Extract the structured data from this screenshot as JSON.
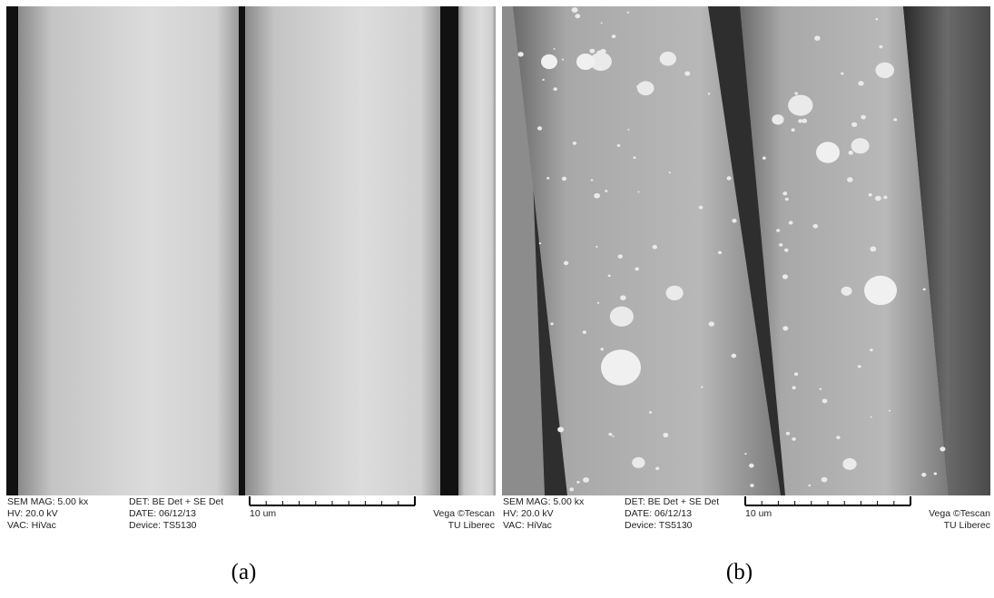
{
  "panels": [
    {
      "mag": "SEM MAG: 5.00 kx",
      "hv": "HV:  20.0 kV",
      "vac": "VAC: HiVac",
      "det": "DET: BE Det + SE Det",
      "date": "DATE: 06/12/13",
      "device": "Device: TS5130",
      "scale": "10 um",
      "vendor": "Vega ©Tescan",
      "lab": "TU Liberec",
      "caption": "(a)"
    },
    {
      "mag": "SEM MAG: 5.00 kx",
      "hv": "HV:  20.0 kV",
      "vac": "VAC: HiVac",
      "det": "DET: BE Det + SE Det",
      "date": "DATE: 06/12/13",
      "device": "Device: TS5130",
      "scale": "10 um",
      "vendor": "Vega ©Tescan",
      "lab": "TU Liberec",
      "caption": "(b)"
    }
  ]
}
